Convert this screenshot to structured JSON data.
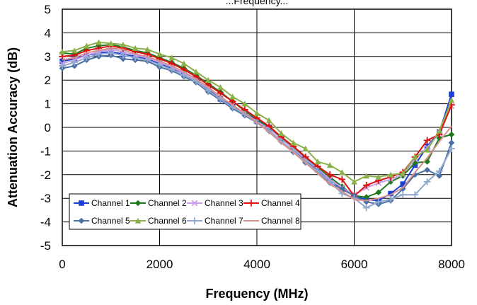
{
  "chart_data": {
    "type": "line",
    "title": "...Frequency...",
    "xlabel": "Frequency (MHz)",
    "ylabel": "Attenuation Accuracy (dB)",
    "xlim": [
      0,
      8000
    ],
    "ylim": [
      -5,
      5
    ],
    "xticks": [
      "0",
      "2000",
      "4000",
      "6000",
      "8000"
    ],
    "yticks": [
      "5",
      "4",
      "3",
      "2",
      "1",
      "0",
      "-1",
      "-2",
      "-3",
      "-4",
      "-5"
    ],
    "grid": true,
    "legend_position": "bottom-left",
    "series": [
      {
        "name": "Channel 1",
        "color": "#1a3fd6",
        "marker": "square",
        "x": [
          0,
          250,
          500,
          750,
          1000,
          1250,
          1500,
          1750,
          2000,
          2250,
          2500,
          2750,
          3000,
          3250,
          3500,
          3750,
          4000,
          4250,
          4500,
          4750,
          5000,
          5250,
          5500,
          5750,
          6000,
          6250,
          6500,
          6750,
          7000,
          7250,
          7500,
          7750,
          8000
        ],
        "y": [
          2.8,
          2.9,
          3.05,
          3.15,
          3.2,
          3.1,
          3.0,
          2.9,
          2.7,
          2.5,
          2.3,
          2.0,
          1.6,
          1.2,
          0.9,
          0.6,
          0.3,
          0.0,
          -0.5,
          -0.9,
          -1.4,
          -1.8,
          -2.2,
          -2.6,
          -2.9,
          -3.05,
          -3.1,
          -2.8,
          -2.4,
          -1.6,
          -0.8,
          -0.2,
          1.4
        ]
      },
      {
        "name": "Channel 2",
        "color": "#1e7a1e",
        "marker": "diamond",
        "x": [
          0,
          250,
          500,
          750,
          1000,
          1250,
          1500,
          1750,
          2000,
          2250,
          2500,
          2750,
          3000,
          3250,
          3500,
          3750,
          4000,
          4250,
          4500,
          4750,
          5000,
          5250,
          5500,
          5750,
          6000,
          6250,
          6500,
          6750,
          7000,
          7250,
          7500,
          7750,
          8000
        ],
        "y": [
          3.15,
          3.1,
          3.35,
          3.45,
          3.5,
          3.4,
          3.25,
          3.15,
          2.95,
          2.75,
          2.5,
          2.2,
          1.85,
          1.5,
          1.1,
          0.7,
          0.35,
          0.0,
          -0.45,
          -0.85,
          -1.3,
          -1.7,
          -2.1,
          -2.5,
          -2.9,
          -2.95,
          -2.75,
          -2.3,
          -2.05,
          -1.5,
          -1.45,
          -0.45,
          -0.3
        ]
      },
      {
        "name": "Channel 3",
        "color": "#c9a0e8",
        "marker": "x",
        "x": [
          0,
          250,
          500,
          750,
          1000,
          1250,
          1500,
          1750,
          2000,
          2250,
          2500,
          2750,
          3000,
          3250,
          3500,
          3750,
          4000,
          4250,
          4500,
          4750,
          5000,
          5250,
          5500,
          5750,
          6000,
          6250,
          6500,
          6750,
          7000,
          7250,
          7500,
          7750,
          8000
        ],
        "y": [
          2.7,
          2.85,
          3.05,
          3.2,
          3.3,
          3.2,
          3.05,
          2.95,
          2.75,
          2.55,
          2.3,
          2.0,
          1.65,
          1.3,
          0.95,
          0.6,
          0.25,
          -0.05,
          -0.5,
          -0.9,
          -1.35,
          -1.75,
          -2.2,
          -2.55,
          -2.85,
          -2.55,
          -2.35,
          -2.2,
          -2.0,
          -1.35,
          -0.85,
          -0.25,
          0.9
        ]
      },
      {
        "name": "Channel 4",
        "color": "#e01010",
        "marker": "plus",
        "x": [
          0,
          250,
          500,
          750,
          1000,
          1250,
          1500,
          1750,
          2000,
          2250,
          2500,
          2750,
          3000,
          3250,
          3500,
          3750,
          4000,
          4250,
          4500,
          4750,
          5000,
          5250,
          5500,
          5750,
          6000,
          6250,
          6500,
          6750,
          7000,
          7250,
          7500,
          7750,
          8000
        ],
        "y": [
          3.0,
          3.05,
          3.25,
          3.35,
          3.45,
          3.35,
          3.2,
          3.1,
          2.9,
          2.7,
          2.45,
          2.15,
          1.8,
          1.45,
          1.1,
          0.75,
          0.4,
          0.05,
          -0.4,
          -0.8,
          -1.25,
          -1.65,
          -2.0,
          -2.2,
          -2.9,
          -2.45,
          -2.25,
          -2.1,
          -1.9,
          -1.25,
          -0.55,
          -0.3,
          0.95
        ]
      },
      {
        "name": "Channel 5",
        "color": "#4a6fa5",
        "marker": "diamond",
        "x": [
          0,
          250,
          500,
          750,
          1000,
          1250,
          1500,
          1750,
          2000,
          2250,
          2500,
          2750,
          3000,
          3250,
          3500,
          3750,
          4000,
          4250,
          4500,
          4750,
          5000,
          5250,
          5500,
          5750,
          6000,
          6250,
          6500,
          6750,
          7000,
          7250,
          7500,
          7750,
          8000
        ],
        "y": [
          2.5,
          2.6,
          2.85,
          3.0,
          3.05,
          2.9,
          2.85,
          2.8,
          2.55,
          2.4,
          2.15,
          1.9,
          1.5,
          1.15,
          0.8,
          0.5,
          0.2,
          -0.15,
          -0.6,
          -1.05,
          -1.5,
          -1.85,
          -2.35,
          -2.6,
          -2.9,
          -3.15,
          -3.25,
          -3.1,
          -2.6,
          -2.0,
          -1.8,
          -2.05,
          -0.65
        ]
      },
      {
        "name": "Channel 6",
        "color": "#8ab04a",
        "marker": "triangle",
        "x": [
          0,
          250,
          500,
          750,
          1000,
          1250,
          1500,
          1750,
          2000,
          2250,
          2500,
          2750,
          3000,
          3250,
          3500,
          3750,
          4000,
          4250,
          4500,
          4750,
          5000,
          5250,
          5500,
          5750,
          6000,
          6250,
          6500,
          6750,
          7000,
          7250,
          7500,
          7750,
          8000
        ],
        "y": [
          3.2,
          3.25,
          3.45,
          3.6,
          3.55,
          3.5,
          3.35,
          3.3,
          3.1,
          2.95,
          2.7,
          2.35,
          2.0,
          1.7,
          1.3,
          1.0,
          0.6,
          0.3,
          -0.25,
          -0.65,
          -0.9,
          -1.45,
          -1.6,
          -1.9,
          -2.3,
          -2.05,
          -2.1,
          -2.0,
          -1.95,
          -1.25,
          -0.95,
          -0.15,
          1.15
        ]
      },
      {
        "name": "Channel 7",
        "color": "#8fa8cc",
        "marker": "plus",
        "x": [
          0,
          250,
          500,
          750,
          1000,
          1250,
          1500,
          1750,
          2000,
          2250,
          2500,
          2750,
          3000,
          3250,
          3500,
          3750,
          4000,
          4250,
          4500,
          4750,
          5000,
          5250,
          5500,
          5750,
          6000,
          6250,
          6500,
          6750,
          7000,
          7250,
          7500,
          7750,
          8000
        ],
        "y": [
          2.6,
          2.75,
          2.95,
          3.1,
          3.15,
          3.05,
          2.95,
          2.85,
          2.65,
          2.45,
          2.2,
          1.95,
          1.55,
          1.2,
          0.85,
          0.55,
          0.2,
          -0.15,
          -0.6,
          -1.0,
          -1.45,
          -1.85,
          -2.3,
          -2.8,
          -3.0,
          -3.4,
          -3.15,
          -3.05,
          -2.85,
          -2.85,
          -2.3,
          -1.85,
          -0.9
        ]
      },
      {
        "name": "Channel 8",
        "color": "#d9908a",
        "marker": "none",
        "x": [
          0,
          250,
          500,
          750,
          1000,
          1250,
          1500,
          1750,
          2000,
          2250,
          2500,
          2750,
          3000,
          3250,
          3500,
          3750,
          4000,
          4250,
          4500,
          4750,
          5000,
          5250,
          5500,
          5750,
          6000,
          6250,
          6500,
          6750,
          7000,
          7250,
          7500,
          7750,
          8000
        ],
        "y": [
          2.85,
          2.95,
          3.15,
          3.25,
          3.35,
          3.3,
          3.1,
          3.0,
          2.8,
          2.6,
          2.35,
          2.05,
          1.7,
          1.3,
          0.95,
          0.6,
          0.2,
          -0.2,
          -0.65,
          -1.05,
          -1.5,
          -1.95,
          -2.4,
          -2.7,
          -3.05,
          -3.1,
          -3.0,
          -2.85,
          -2.55,
          -1.9,
          -1.3,
          -0.6,
          0.05
        ]
      }
    ]
  }
}
